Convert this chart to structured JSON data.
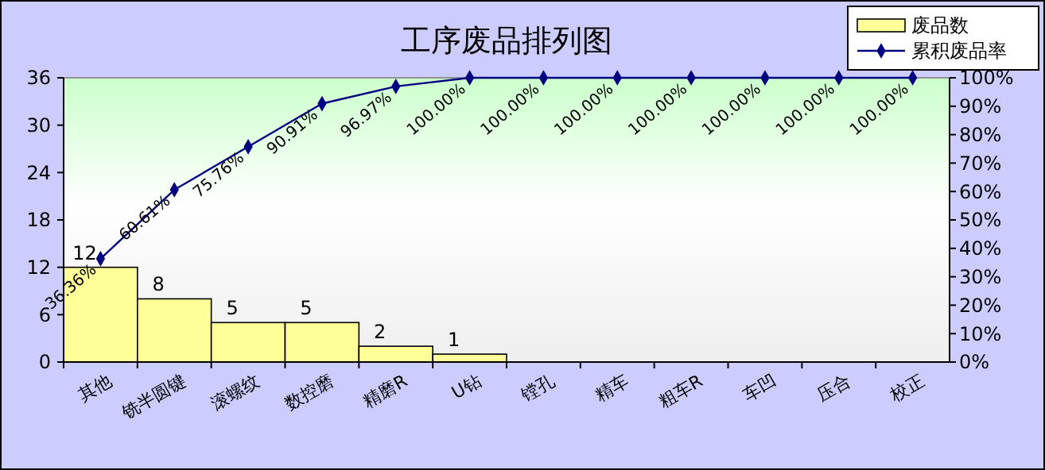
{
  "chart_data": {
    "type": "bar",
    "title": "工序废品排列图",
    "categories": [
      "其他",
      "铣半圆键",
      "滚螺纹",
      "数控磨",
      "精磨R",
      "U钻",
      "镗孔",
      "精车",
      "粗车R",
      "车凹",
      "压合",
      "校正"
    ],
    "series": [
      {
        "name": "废品数",
        "color": "#ffff99",
        "values": [
          12,
          8,
          5,
          5,
          2,
          1,
          0,
          0,
          0,
          0,
          0,
          0
        ],
        "value_labels": [
          "12",
          "8",
          "5",
          "5",
          "2",
          "1",
          null,
          null,
          null,
          null,
          null,
          null
        ]
      },
      {
        "name": "累积废品率",
        "type": "line",
        "axis": "y2",
        "color": "#000080",
        "marker": "diamond",
        "values": [
          36.36,
          60.61,
          75.76,
          90.91,
          96.97,
          100,
          100,
          100,
          100,
          100,
          100,
          100
        ],
        "value_labels": [
          "36.36%",
          "60.61%",
          "75.76%",
          "90.91%",
          "96.97%",
          "100.00%",
          "100.00%",
          "100.00%",
          "100.00%",
          "100.00%",
          "100.00%",
          "100.00%"
        ]
      }
    ],
    "ylim": [
      0,
      36
    ],
    "yticks": [
      0,
      6,
      12,
      18,
      24,
      30,
      36
    ],
    "y2lim": [
      0,
      100
    ],
    "y2ticks": [
      {
        "value": 0,
        "label": "0%"
      },
      {
        "value": 10,
        "label": "10%"
      },
      {
        "value": 20,
        "label": "20%"
      },
      {
        "value": 30,
        "label": "30%"
      },
      {
        "value": 40,
        "label": "40%"
      },
      {
        "value": 50,
        "label": "50%"
      },
      {
        "value": 60,
        "label": "60%"
      },
      {
        "value": 70,
        "label": "70%"
      },
      {
        "value": 80,
        "label": "80%"
      },
      {
        "value": 90,
        "label": "90%"
      },
      {
        "value": 100,
        "label": "100%"
      }
    ],
    "legend": "top right",
    "grid": false
  }
}
